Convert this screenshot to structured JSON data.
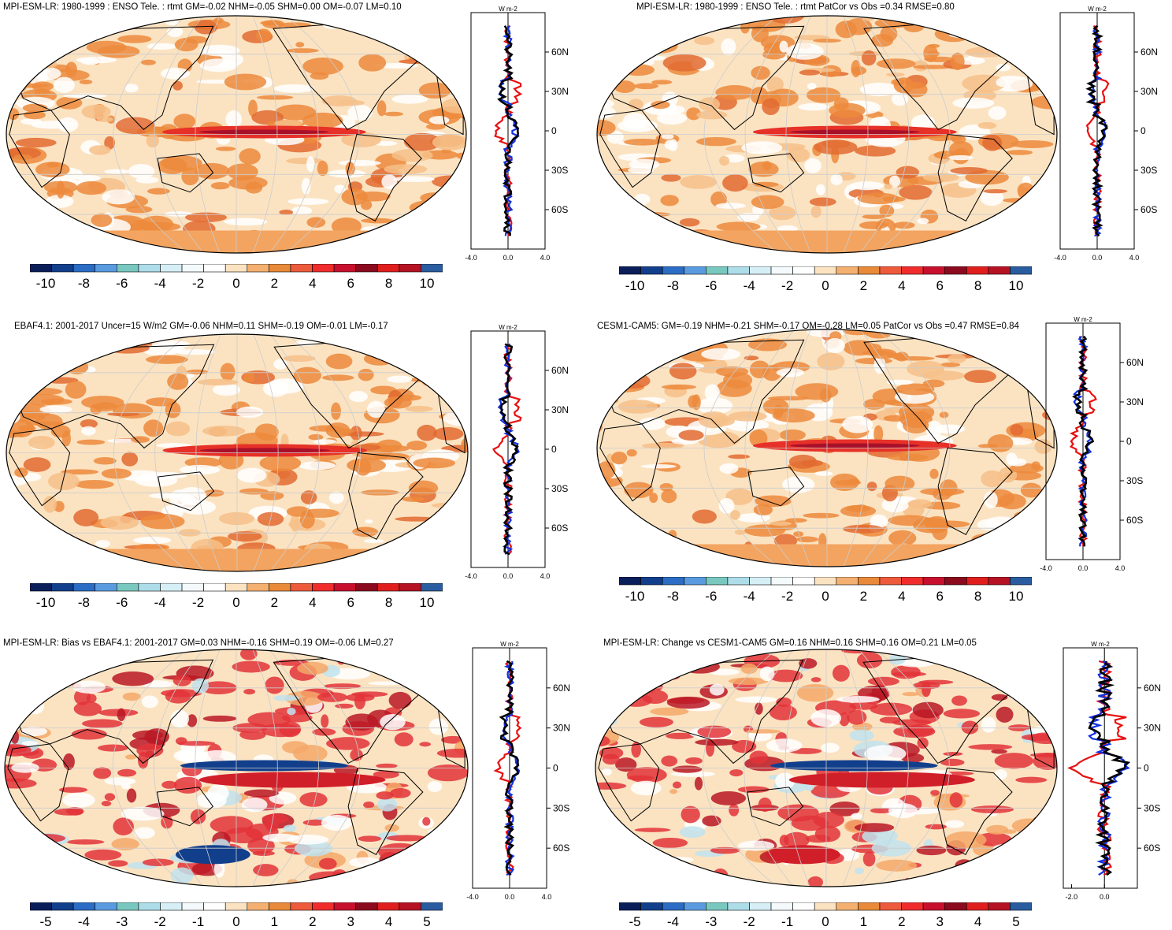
{
  "colors": {
    "scale": [
      "#0a1e5a",
      "#123f8c",
      "#2b6cc4",
      "#5a9be0",
      "#79c8c0",
      "#aeddea",
      "#d6eef5",
      "#f4fafc",
      "#ffffff",
      "#fbe3c2",
      "#f4b070",
      "#e88a3a",
      "#ee5a3c",
      "#f02c2c",
      "#c8102e",
      "#8b0a1e",
      "#e01e1e",
      "#b51224",
      "#2a5d9f"
    ],
    "ocean_base": "#fbe3c2",
    "warm_band": "#ec8a3c",
    "red_band": "#e63028",
    "coast": "#000000",
    "profile_red": "#e81010",
    "profile_blue": "#1030e0",
    "profile_black": "#000000"
  },
  "unit_label": "W m-2",
  "lat_ticks": [
    "60N",
    "30N",
    "0",
    "30S",
    "60S"
  ],
  "panels": [
    {
      "id": "p1",
      "title": "MPI-ESM-LR: 1980-1999 : ENSO Tele. : rtmt GM=-0.02 NHM=-0.05 SHM=0.00 OM=-0.07 LM=0.10",
      "colorbar_labels": [
        "-10",
        "-8",
        "-6",
        "-4",
        "-2",
        "0",
        "2",
        "4",
        "6",
        "8",
        "10"
      ],
      "profile_x_labels": [
        "-4.0",
        "0.0",
        "4.0"
      ],
      "profile_xlim": [
        -4,
        4
      ]
    },
    {
      "id": "p2",
      "title": "MPI-ESM-LR: 1980-1999 : ENSO Tele. : rtmt PatCor vs Obs =0.34 RMSE=0.80",
      "colorbar_labels": [
        "-10",
        "-8",
        "-6",
        "-4",
        "-2",
        "0",
        "2",
        "4",
        "6",
        "8",
        "10"
      ],
      "profile_x_labels": [
        "-4.0",
        "0.0",
        "4.0"
      ],
      "profile_xlim": [
        -4,
        4
      ]
    },
    {
      "id": "p3",
      "title": "EBAF4.1: 2001-2017 Uncer=15 W/m2 GM=-0.06 NHM=0.11 SHM=-0.19 OM=-0.01 LM=-0.17",
      "colorbar_labels": [
        "-10",
        "-8",
        "-6",
        "-4",
        "-2",
        "0",
        "2",
        "4",
        "6",
        "8",
        "10"
      ],
      "profile_x_labels": [
        "-4.0",
        "0.0",
        "4.0"
      ],
      "profile_xlim": [
        -4,
        4
      ]
    },
    {
      "id": "p4",
      "title": "CESM1-CAM5: GM=-0.19 NHM=-0.21 SHM=-0.17 OM=-0.28 LM=0.05 PatCor vs Obs =0.47 RMSE=0.84",
      "colorbar_labels": [
        "-10",
        "-8",
        "-6",
        "-4",
        "-2",
        "0",
        "2",
        "4",
        "6",
        "8",
        "10"
      ],
      "profile_x_labels": [
        "-4.0",
        "0.0",
        "4.0"
      ],
      "profile_xlim": [
        -4,
        4
      ]
    },
    {
      "id": "p5",
      "title": "MPI-ESM-LR: Bias vs EBAF4.1: 2001-2017 GM=0.03 NHM=-0.16 SHM=0.19 OM=-0.06 LM=0.27",
      "colorbar_labels": [
        "-5",
        "-4",
        "-3",
        "-2",
        "-1",
        "0",
        "1",
        "2",
        "3",
        "4",
        "5"
      ],
      "profile_x_labels": [
        "-4.0",
        "0.0",
        "4.0"
      ],
      "profile_xlim": [
        -4,
        4
      ]
    },
    {
      "id": "p6",
      "title": "MPI-ESM-LR: Change vs CESM1-CAM5 GM=0.16 NHM=0.16 SHM=0.16 OM=0.21 LM=0.05",
      "colorbar_labels": [
        "-5",
        "-4",
        "-3",
        "-2",
        "-1",
        "0",
        "1",
        "2",
        "3",
        "4",
        "5"
      ],
      "profile_x_labels": [
        "-2.0",
        "0.0"
      ],
      "profile_xlim": [
        -2.5,
        2
      ]
    }
  ]
}
